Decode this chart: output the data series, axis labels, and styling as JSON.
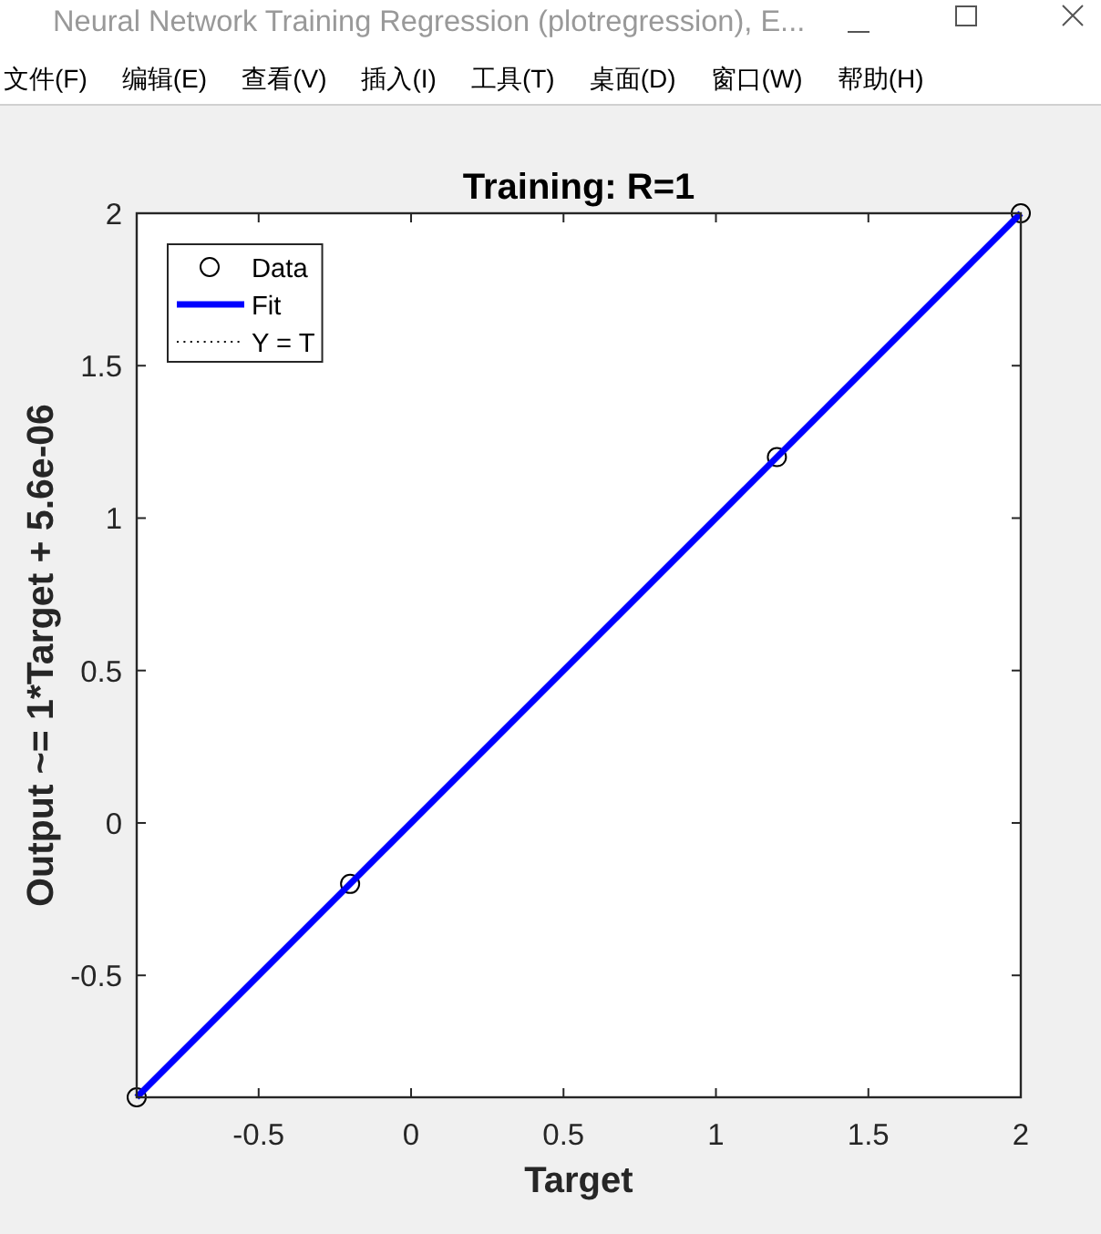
{
  "chart_data": {
    "type": "scatter",
    "title": "Training: R=1",
    "xlabel": "Target",
    "ylabel": "Output ~= 1*Target + 5.6e-06",
    "annotations": [
      "Neural Network Training Regression (plotregression), E...",
      "文件(F)",
      "编辑(E)",
      "查看(V)",
      "插入(I)",
      "工具(T)",
      "桌面(D)",
      "窗口(W)",
      "帮助(H)"
    ],
    "xlim": [
      -0.9,
      2
    ],
    "ylim": [
      -0.9,
      2
    ],
    "xticks": [
      -0.5,
      0,
      0.5,
      1,
      1.5,
      2
    ],
    "yticks": [
      -0.5,
      0,
      0.5,
      1,
      1.5,
      2
    ],
    "grid": false,
    "legend": "top left",
    "series": [
      {
        "name": "Data",
        "color": "#000000",
        "marker": "circle",
        "x": [
          -0.9,
          -0.2,
          1.2,
          2
        ],
        "values": [
          -0.9,
          -0.2,
          1.2,
          2
        ]
      },
      {
        "name": "Fit",
        "type": "line",
        "color": "#0000ff",
        "line_style": "solid",
        "x": [
          -0.9,
          2
        ],
        "values": [
          -0.9,
          2
        ]
      },
      {
        "name": "Y = T",
        "type": "line",
        "color": "#000000",
        "line_style": "dotted",
        "values": [
          null,
          null
        ]
      }
    ]
  }
}
